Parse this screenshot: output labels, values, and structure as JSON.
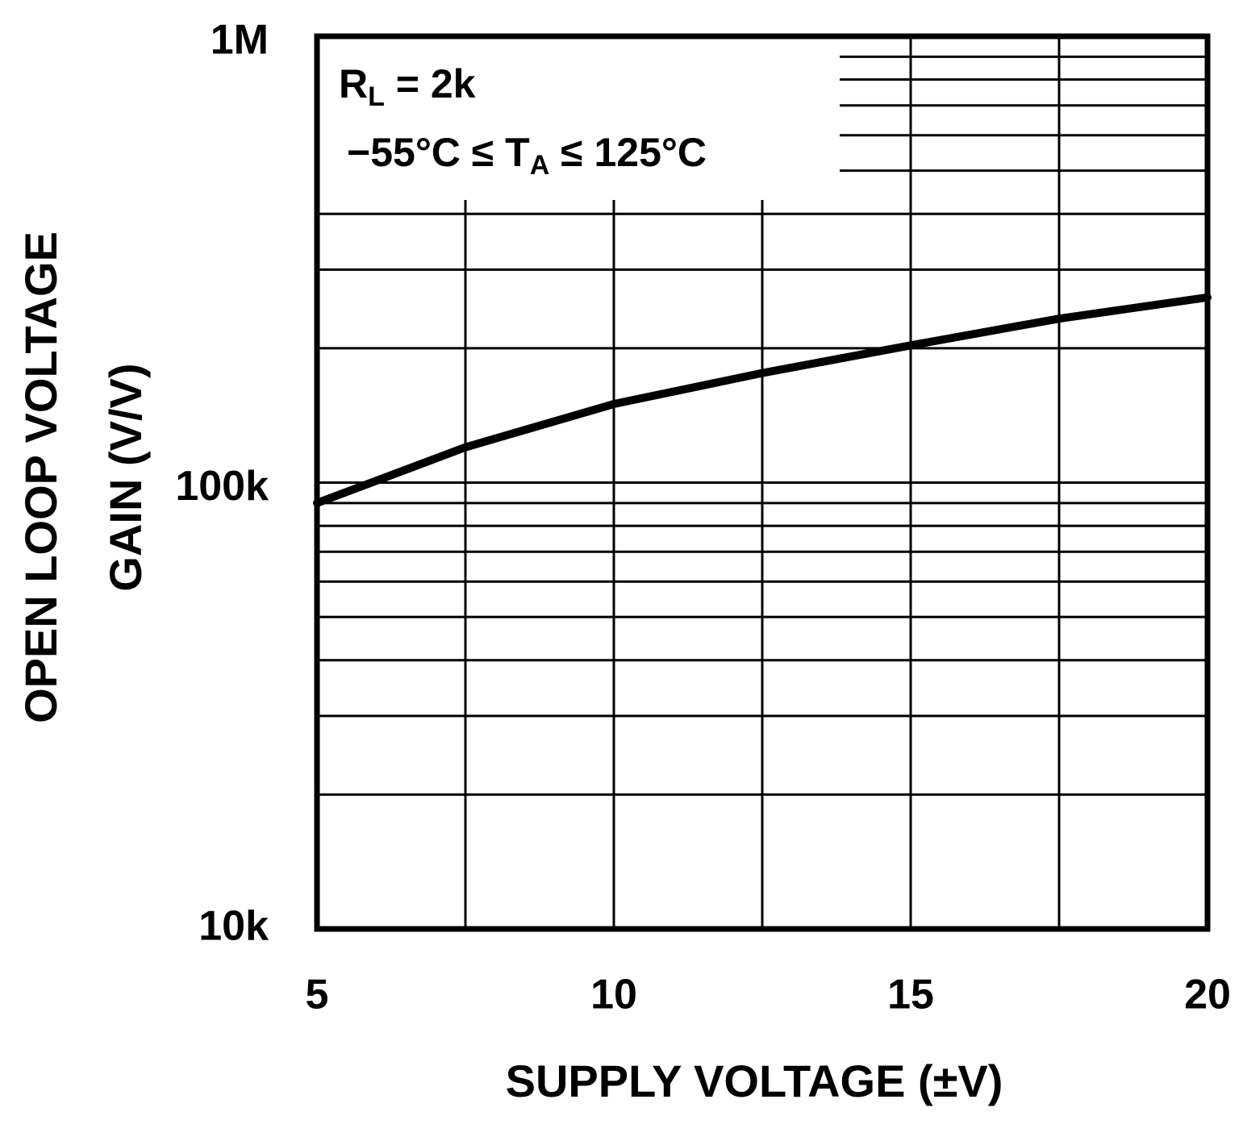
{
  "chart_data": {
    "type": "line",
    "annotations": [
      [
        "R",
        "L",
        " = 2k"
      ],
      [
        "−55°C ≤ T",
        "A",
        " ≤ 125°C"
      ]
    ],
    "xlabel": "SUPPLY VOLTAGE (±V)",
    "ylabel": [
      "OPEN LOOP VOLTAGE",
      "GAIN (V/V)"
    ],
    "x": [
      5,
      7.5,
      10,
      12.5,
      15,
      17.5,
      20
    ],
    "series": [
      {
        "color": "#000000",
        "values": [
          90000,
          120000,
          150000,
          176000,
          203000,
          233000,
          260000
        ]
      }
    ],
    "xlim": [
      5,
      20
    ],
    "xticks": [
      5,
      10,
      15,
      20
    ],
    "xminor": [
      7.5,
      12.5,
      17.5
    ],
    "ylim": [
      10000,
      1000000
    ],
    "yticks": [
      {
        "value": 10000,
        "label": "10k"
      },
      {
        "value": 100000,
        "label": "100k"
      },
      {
        "value": 1000000,
        "label": "1M"
      }
    ],
    "ylog": true,
    "grid": true
  }
}
